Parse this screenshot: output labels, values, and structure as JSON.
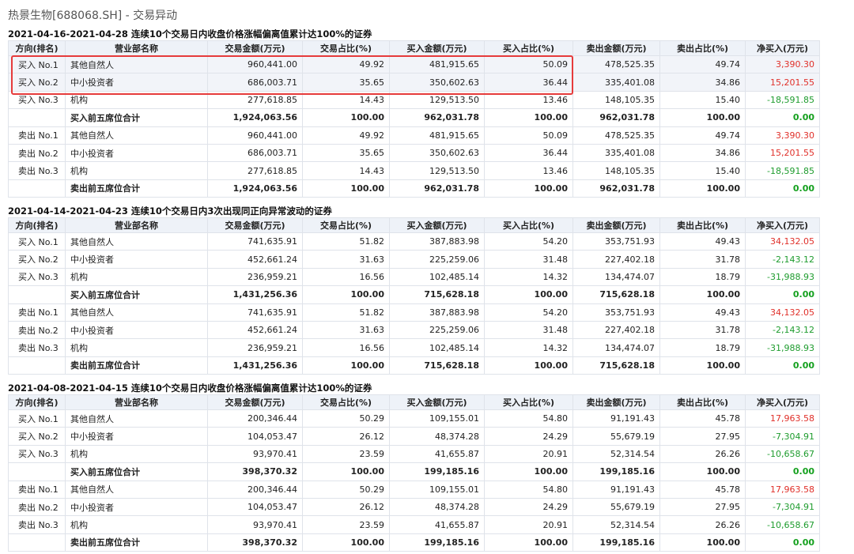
{
  "page_title": "热景生物[688068.SH] - 交易异动",
  "columns": [
    "方向(排名)",
    "营业部名称",
    "交易金额(万元)",
    "交易占比(%)",
    "买入金额(万元)",
    "买入占比(%)",
    "卖出金额(万元)",
    "卖出占比(%)",
    "净买入(万元)"
  ],
  "sections": [
    {
      "title": "2021-04-16-2021-04-28 连续10个交易日内收盘价格涨幅偏离值累计达100%的证券",
      "rows": [
        [
          "买入 No.1",
          "其他自然人",
          "960,441.00",
          "49.92",
          "481,915.65",
          "50.09",
          "478,525.35",
          "49.74",
          "3,390.30"
        ],
        [
          "买入 No.2",
          "中小投资者",
          "686,003.71",
          "35.65",
          "350,602.63",
          "36.44",
          "335,401.08",
          "34.86",
          "15,201.55"
        ],
        [
          "买入 No.3",
          "机构",
          "277,618.85",
          "14.43",
          "129,513.50",
          "13.46",
          "148,105.35",
          "15.40",
          "-18,591.85"
        ],
        [
          "",
          "买入前五席位合计",
          "1,924,063.56",
          "100.00",
          "962,031.78",
          "100.00",
          "962,031.78",
          "100.00",
          "0.00"
        ],
        [
          "卖出 No.1",
          "其他自然人",
          "960,441.00",
          "49.92",
          "481,915.65",
          "50.09",
          "478,525.35",
          "49.74",
          "3,390.30"
        ],
        [
          "卖出 No.2",
          "中小投资者",
          "686,003.71",
          "35.65",
          "350,602.63",
          "36.44",
          "335,401.08",
          "34.86",
          "15,201.55"
        ],
        [
          "卖出 No.3",
          "机构",
          "277,618.85",
          "14.43",
          "129,513.50",
          "13.46",
          "148,105.35",
          "15.40",
          "-18,591.85"
        ],
        [
          "",
          "卖出前五席位合计",
          "1,924,063.56",
          "100.00",
          "962,031.78",
          "100.00",
          "962,031.78",
          "100.00",
          "0.00"
        ]
      ]
    },
    {
      "title": "2021-04-14-2021-04-23 连续10个交易日内3次出现同正向异常波动的证券",
      "rows": [
        [
          "买入 No.1",
          "其他自然人",
          "741,635.91",
          "51.82",
          "387,883.98",
          "54.20",
          "353,751.93",
          "49.43",
          "34,132.05"
        ],
        [
          "买入 No.2",
          "中小投资者",
          "452,661.24",
          "31.63",
          "225,259.06",
          "31.48",
          "227,402.18",
          "31.78",
          "-2,143.12"
        ],
        [
          "买入 No.3",
          "机构",
          "236,959.21",
          "16.56",
          "102,485.14",
          "14.32",
          "134,474.07",
          "18.79",
          "-31,988.93"
        ],
        [
          "",
          "买入前五席位合计",
          "1,431,256.36",
          "100.00",
          "715,628.18",
          "100.00",
          "715,628.18",
          "100.00",
          "0.00"
        ],
        [
          "卖出 No.1",
          "其他自然人",
          "741,635.91",
          "51.82",
          "387,883.98",
          "54.20",
          "353,751.93",
          "49.43",
          "34,132.05"
        ],
        [
          "卖出 No.2",
          "中小投资者",
          "452,661.24",
          "31.63",
          "225,259.06",
          "31.48",
          "227,402.18",
          "31.78",
          "-2,143.12"
        ],
        [
          "卖出 No.3",
          "机构",
          "236,959.21",
          "16.56",
          "102,485.14",
          "14.32",
          "134,474.07",
          "18.79",
          "-31,988.93"
        ],
        [
          "",
          "卖出前五席位合计",
          "1,431,256.36",
          "100.00",
          "715,628.18",
          "100.00",
          "715,628.18",
          "100.00",
          "0.00"
        ]
      ]
    },
    {
      "title": "2021-04-08-2021-04-15 连续10个交易日内收盘价格涨幅偏离值累计达100%的证券",
      "rows": [
        [
          "买入 No.1",
          "其他自然人",
          "200,346.44",
          "50.29",
          "109,155.01",
          "54.80",
          "91,191.43",
          "45.78",
          "17,963.58"
        ],
        [
          "买入 No.2",
          "中小投资者",
          "104,053.47",
          "26.12",
          "48,374.28",
          "24.29",
          "55,679.19",
          "27.95",
          "-7,304.91"
        ],
        [
          "买入 No.3",
          "机构",
          "93,970.41",
          "23.59",
          "41,655.87",
          "20.91",
          "52,314.54",
          "26.26",
          "-10,658.67"
        ],
        [
          "",
          "买入前五席位合计",
          "398,370.32",
          "100.00",
          "199,185.16",
          "100.00",
          "199,185.16",
          "100.00",
          "0.00"
        ],
        [
          "卖出 No.1",
          "其他自然人",
          "200,346.44",
          "50.29",
          "109,155.01",
          "54.80",
          "91,191.43",
          "45.78",
          "17,963.58"
        ],
        [
          "卖出 No.2",
          "中小投资者",
          "104,053.47",
          "26.12",
          "48,374.28",
          "24.29",
          "55,679.19",
          "27.95",
          "-7,304.91"
        ],
        [
          "卖出 No.3",
          "机构",
          "93,970.41",
          "23.59",
          "41,655.87",
          "20.91",
          "52,314.54",
          "26.26",
          "-10,658.67"
        ],
        [
          "",
          "卖出前五席位合计",
          "398,370.32",
          "100.00",
          "199,185.16",
          "100.00",
          "199,185.16",
          "100.00",
          "0.00"
        ]
      ]
    }
  ],
  "colors": {
    "positive": "#e0302a",
    "negative": "#1e9c2e",
    "highlight_box": "#e63b3b"
  }
}
